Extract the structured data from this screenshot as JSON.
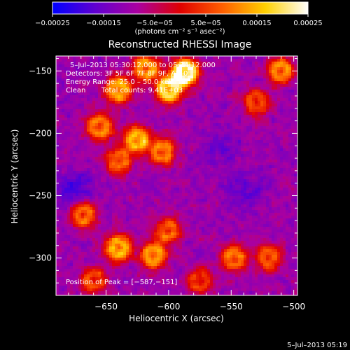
{
  "chart_data": {
    "type": "heatmap",
    "title": "Reconstructed RHESSI Image",
    "xlabel": "Heliocentric X (arcsec)",
    "ylabel": "Heliocentric Y (arcsec)",
    "xlim": [
      -690,
      -497
    ],
    "ylim": [
      -330,
      -138
    ],
    "x_ticks": [
      -650,
      -600,
      -550,
      -500
    ],
    "x_tick_labels": [
      "−650",
      "−600",
      "−550",
      "−500"
    ],
    "y_ticks": [
      -150,
      -200,
      -250,
      -300
    ],
    "y_tick_labels": [
      "−150",
      "−200",
      "−250",
      "−300"
    ],
    "colorbar": {
      "range": [
        -0.00025,
        0.00025
      ],
      "ticks": [
        -0.00025,
        -0.00015,
        -5e-05,
        5e-05,
        0.00015,
        0.00025
      ],
      "tick_labels": [
        "−0.00025",
        "−0.00015",
        "−5.0e−05",
        "5.0e−05",
        "0.00015",
        "0.00025"
      ],
      "unit_label": "(photons cm⁻² s⁻¹ asec⁻²)",
      "colormap": [
        "#0000ff",
        "#6000d0",
        "#aa00a0",
        "#e00000",
        "#ff6000",
        "#ffd000",
        "#ffffff"
      ]
    },
    "annotations": {
      "time_range": "5–Jul–2013 05:30:12.000 to 05:34:12.000",
      "detectors": "Detectors: 3F 5F 6F 7F 8F 9F, Att 0",
      "energy_range": "Energy Range: 25.0 – 50.0 keV",
      "clean": "Clean",
      "total_counts": "Total counts: 9.41E+03",
      "peak_position": "Position of Peak = [−587,−151]"
    },
    "peak": {
      "x": -587,
      "y": -151
    },
    "hotspots": [
      {
        "x": -587,
        "y": -151,
        "intensity": 1.0
      },
      {
        "x": -600,
        "y": -165,
        "intensity": 0.8
      },
      {
        "x": -618,
        "y": -148,
        "intensity": 0.65
      },
      {
        "x": -640,
        "y": -165,
        "intensity": 0.7
      },
      {
        "x": -655,
        "y": -195,
        "intensity": 0.6
      },
      {
        "x": -625,
        "y": -205,
        "intensity": 0.7
      },
      {
        "x": -605,
        "y": -215,
        "intensity": 0.55
      },
      {
        "x": -640,
        "y": -222,
        "intensity": 0.5
      },
      {
        "x": -668,
        "y": -265,
        "intensity": 0.55
      },
      {
        "x": -640,
        "y": -292,
        "intensity": 0.7
      },
      {
        "x": -612,
        "y": -298,
        "intensity": 0.65
      },
      {
        "x": -600,
        "y": -278,
        "intensity": 0.5
      },
      {
        "x": -548,
        "y": -300,
        "intensity": 0.55
      },
      {
        "x": -520,
        "y": -300,
        "intensity": 0.5
      },
      {
        "x": -510,
        "y": -150,
        "intensity": 0.6
      },
      {
        "x": -530,
        "y": -175,
        "intensity": 0.45
      },
      {
        "x": -575,
        "y": -318,
        "intensity": 0.4
      },
      {
        "x": -660,
        "y": -318,
        "intensity": 0.45
      }
    ],
    "coldspots": [
      {
        "x": -675,
        "y": -245,
        "intensity": 0.7
      },
      {
        "x": -540,
        "y": -245,
        "intensity": 0.55
      },
      {
        "x": -560,
        "y": -210,
        "intensity": 0.4
      }
    ]
  },
  "footer": {
    "timestamp": "5–Jul–2013 05:19"
  }
}
